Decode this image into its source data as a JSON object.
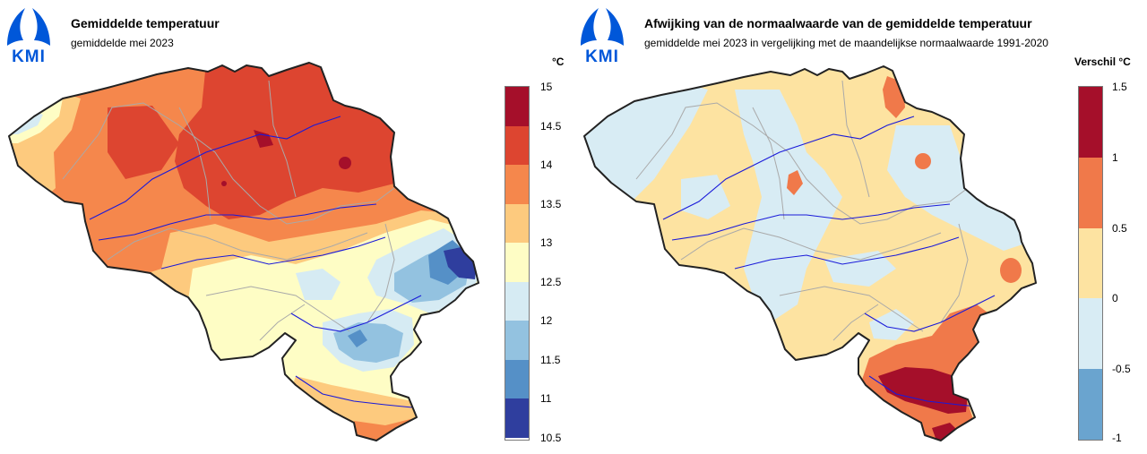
{
  "left": {
    "logo_text": "KMI",
    "title": "Gemiddelde temperatuur",
    "subtitle": "gemiddelde mei 2023",
    "unit": "°C",
    "legend": {
      "ticks": [
        "15",
        "14.5",
        "14",
        "13.5",
        "13",
        "12.5",
        "12",
        "11.5",
        "11",
        "10.5"
      ],
      "colors": [
        "#a50f2a",
        "#dd4530",
        "#f5874c",
        "#fdca7e",
        "#fefdc5",
        "#d6ebf3",
        "#93c2e0",
        "#5590c7",
        "#2f3e9e"
      ]
    }
  },
  "right": {
    "logo_text": "KMI",
    "title": "Afwijking van de normaalwaarde van de gemiddelde temperatuur",
    "subtitle": "gemiddelde mei 2023 in vergelijking met de maandelijkse normaalwaarde 1991-2020",
    "unit": "Verschil °C",
    "legend": {
      "ticks": [
        "1.5",
        "1",
        "0.5",
        "0",
        "-0.5",
        "-1"
      ],
      "colors": [
        "#a50f2a",
        "#f0794a",
        "#fde3a1",
        "#d8ecf4",
        "#6aa4cf"
      ]
    }
  }
}
